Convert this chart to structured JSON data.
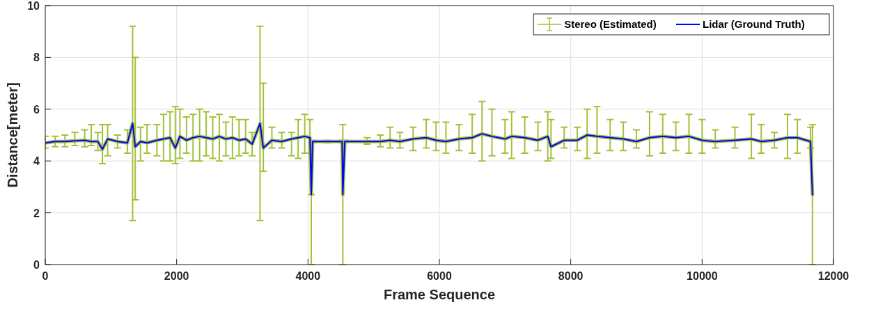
{
  "chart_data": {
    "type": "line",
    "xlabel": "Frame Sequence",
    "ylabel": "Distance[meter]",
    "x": [
      0,
      150,
      300,
      450,
      600,
      700,
      800,
      870,
      950,
      1100,
      1250,
      1330,
      1370,
      1450,
      1550,
      1700,
      1800,
      1900,
      1980,
      2050,
      2150,
      2250,
      2350,
      2450,
      2550,
      2650,
      2750,
      2850,
      2950,
      3050,
      3150,
      3270,
      3320,
      3450,
      3600,
      3750,
      3850,
      3950,
      4030,
      4050,
      4070,
      4300,
      4520,
      4530,
      4560,
      4900,
      5100,
      5250,
      5400,
      5600,
      5800,
      5950,
      6100,
      6300,
      6500,
      6650,
      6800,
      7000,
      7100,
      7300,
      7500,
      7650,
      7700,
      7900,
      8100,
      8250,
      8400,
      8600,
      8800,
      9000,
      9200,
      9400,
      9600,
      9800,
      10000,
      10200,
      10500,
      10750,
      10900,
      11100,
      11300,
      11450,
      11650,
      11680
    ],
    "series": [
      {
        "name": "Stereo (Estimated)",
        "color": "#a2c13a",
        "values": [
          4.7,
          4.75,
          4.75,
          4.78,
          4.8,
          4.75,
          4.75,
          4.45,
          4.85,
          4.75,
          4.7,
          5.45,
          4.55,
          4.75,
          4.7,
          4.8,
          4.85,
          4.9,
          4.5,
          4.95,
          4.8,
          4.9,
          4.95,
          4.9,
          4.85,
          4.95,
          4.85,
          4.9,
          4.8,
          4.85,
          4.65,
          5.45,
          4.5,
          4.8,
          4.75,
          4.85,
          4.9,
          4.95,
          4.9,
          2.7,
          4.75,
          4.75,
          4.75,
          2.7,
          4.75,
          4.75,
          4.75,
          4.8,
          4.75,
          4.85,
          4.9,
          4.8,
          4.75,
          4.85,
          4.9,
          5.05,
          4.95,
          4.85,
          4.95,
          4.9,
          4.8,
          4.95,
          4.55,
          4.8,
          4.8,
          5.0,
          4.95,
          4.9,
          4.85,
          4.75,
          4.9,
          4.95,
          4.9,
          4.95,
          4.8,
          4.75,
          4.8,
          4.85,
          4.75,
          4.8,
          4.9,
          4.9,
          4.75,
          2.7
        ],
        "errors": [
          [
            4.5,
            4.95
          ],
          [
            4.55,
            4.95
          ],
          [
            4.55,
            5.0
          ],
          [
            4.6,
            5.1
          ],
          [
            4.55,
            5.2
          ],
          [
            4.6,
            5.4
          ],
          [
            4.4,
            5.1
          ],
          [
            3.9,
            5.4
          ],
          [
            4.2,
            5.4
          ],
          [
            4.5,
            5.0
          ],
          [
            4.3,
            5.2
          ],
          [
            1.7,
            9.2
          ],
          [
            2.5,
            8.0
          ],
          [
            4.0,
            5.3
          ],
          [
            4.3,
            5.4
          ],
          [
            4.2,
            5.4
          ],
          [
            4.0,
            5.8
          ],
          [
            4.0,
            5.9
          ],
          [
            3.9,
            6.1
          ],
          [
            4.1,
            6.0
          ],
          [
            4.3,
            5.7
          ],
          [
            4.0,
            5.8
          ],
          [
            4.0,
            6.0
          ],
          [
            4.2,
            5.9
          ],
          [
            4.1,
            5.7
          ],
          [
            4.0,
            5.8
          ],
          [
            4.2,
            5.5
          ],
          [
            4.1,
            5.7
          ],
          [
            4.2,
            5.6
          ],
          [
            4.3,
            5.6
          ],
          [
            4.2,
            5.1
          ],
          [
            1.7,
            9.2
          ],
          [
            3.6,
            7.0
          ],
          [
            4.5,
            5.3
          ],
          [
            4.5,
            5.1
          ],
          [
            4.2,
            5.1
          ],
          [
            4.1,
            5.6
          ],
          [
            4.3,
            5.8
          ],
          [
            4.3,
            5.6
          ],
          [
            0,
            2.7
          ],
          [
            4.7,
            4.8
          ],
          [
            4.7,
            4.8
          ],
          [
            4.7,
            4.8
          ],
          [
            0,
            5.4
          ],
          [
            4.7,
            4.8
          ],
          [
            4.65,
            4.9
          ],
          [
            4.55,
            5.0
          ],
          [
            4.5,
            5.3
          ],
          [
            4.5,
            5.1
          ],
          [
            4.4,
            5.3
          ],
          [
            4.5,
            5.6
          ],
          [
            4.4,
            5.5
          ],
          [
            4.3,
            5.5
          ],
          [
            4.4,
            5.4
          ],
          [
            4.3,
            5.8
          ],
          [
            4.0,
            6.3
          ],
          [
            4.2,
            6.0
          ],
          [
            4.3,
            5.6
          ],
          [
            4.1,
            5.9
          ],
          [
            4.3,
            5.7
          ],
          [
            4.4,
            5.5
          ],
          [
            4.0,
            5.9
          ],
          [
            4.1,
            5.6
          ],
          [
            4.5,
            5.3
          ],
          [
            4.4,
            5.3
          ],
          [
            4.1,
            6.0
          ],
          [
            4.3,
            6.1
          ],
          [
            4.4,
            5.6
          ],
          [
            4.4,
            5.5
          ],
          [
            4.5,
            5.2
          ],
          [
            4.2,
            5.9
          ],
          [
            4.3,
            5.8
          ],
          [
            4.4,
            5.5
          ],
          [
            4.3,
            5.8
          ],
          [
            4.3,
            5.6
          ],
          [
            4.5,
            5.2
          ],
          [
            4.5,
            5.3
          ],
          [
            4.1,
            5.8
          ],
          [
            4.3,
            5.4
          ],
          [
            4.5,
            5.1
          ],
          [
            4.1,
            5.8
          ],
          [
            4.3,
            5.6
          ],
          [
            4.5,
            5.3
          ],
          [
            0,
            5.4
          ]
        ]
      },
      {
        "name": "Lidar (Ground Truth)",
        "color": "#0000ff",
        "values": [
          4.7,
          4.75,
          4.75,
          4.78,
          4.8,
          4.75,
          4.75,
          4.45,
          4.85,
          4.75,
          4.7,
          5.45,
          4.55,
          4.75,
          4.7,
          4.8,
          4.85,
          4.9,
          4.5,
          4.95,
          4.8,
          4.9,
          4.95,
          4.9,
          4.85,
          4.95,
          4.85,
          4.9,
          4.8,
          4.85,
          4.65,
          5.45,
          4.5,
          4.8,
          4.75,
          4.85,
          4.9,
          4.95,
          4.9,
          2.7,
          4.75,
          4.75,
          4.75,
          2.7,
          4.75,
          4.75,
          4.75,
          4.8,
          4.75,
          4.85,
          4.9,
          4.8,
          4.75,
          4.85,
          4.9,
          5.05,
          4.95,
          4.85,
          4.95,
          4.9,
          4.8,
          4.95,
          4.55,
          4.8,
          4.8,
          5.0,
          4.95,
          4.9,
          4.85,
          4.75,
          4.9,
          4.95,
          4.9,
          4.95,
          4.8,
          4.75,
          4.8,
          4.85,
          4.75,
          4.8,
          4.9,
          4.9,
          4.75,
          2.7
        ]
      }
    ],
    "xlim": [
      0,
      12000
    ],
    "xticks": [
      0,
      2000,
      4000,
      6000,
      8000,
      10000,
      12000
    ],
    "ylim": [
      0,
      10
    ],
    "yticks": [
      0,
      2,
      4,
      6,
      8,
      10
    ],
    "grid": true,
    "legend": "top right",
    "marker": "none",
    "line_style": "solid"
  }
}
